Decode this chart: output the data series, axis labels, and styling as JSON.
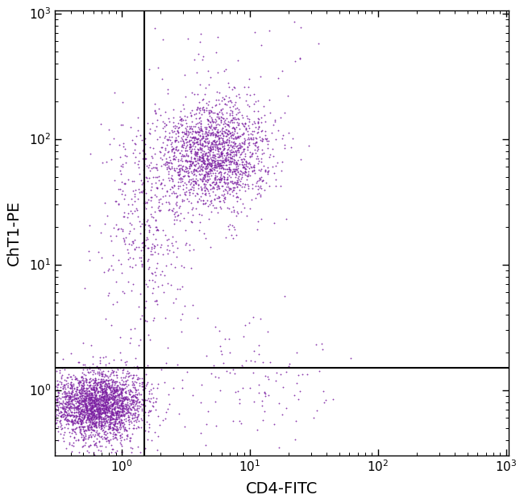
{
  "xlabel": "CD4-FITC",
  "ylabel": "ChT1-PE",
  "xlim_log": [
    -0.52,
    3.02
  ],
  "ylim_log": [
    -0.52,
    3.02
  ],
  "xticks": [
    1,
    10,
    100,
    1000
  ],
  "yticks": [
    1,
    10,
    100,
    1000
  ],
  "gate_x": 1.5,
  "gate_y": 1.5,
  "dot_color": "#7B1FA2",
  "dot_alpha": 0.85,
  "dot_size": 1.8,
  "background_color": "#ffffff",
  "cluster_bottom_left": {
    "n": 2500,
    "x_center_log": -0.18,
    "y_center_log": -0.12,
    "x_std_log": 0.18,
    "y_std_log": 0.14
  },
  "cluster_upper_main": {
    "n": 1800,
    "x_center_log": 0.72,
    "y_center_log": 1.88,
    "x_std_log": 0.22,
    "y_std_log": 0.22
  },
  "scatter_trail_up": {
    "n": 400,
    "x_center_log": 0.18,
    "y_center_log": 1.3,
    "x_std_log": 0.18,
    "y_std_log": 0.45
  },
  "scatter_right_low": {
    "n": 120,
    "x_center_log": 1.0,
    "y_center_log": 0.05,
    "x_std_log": 0.35,
    "y_std_log": 0.25
  },
  "scatter_top_sparse": {
    "n": 30,
    "x_center_log": 0.9,
    "y_center_log": 2.65,
    "x_std_log": 0.3,
    "y_std_log": 0.15
  }
}
